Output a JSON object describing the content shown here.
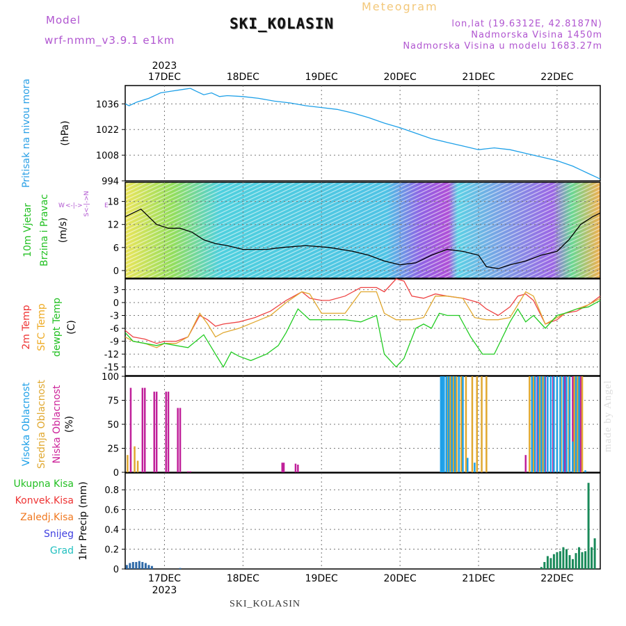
{
  "header": {
    "model_label": "Model",
    "model_name": "wrf-nmm_v3.9.1 e1km",
    "station": "SKI_KOLASIN",
    "title": "Meteogram",
    "lonlat": "lon,lat (19.6312E, 42.8187N)",
    "elevation": "Nadmorska Visina 1450m",
    "model_elevation": "Nadmorska Visina u modelu 1683.27m"
  },
  "footer": {
    "station": "SKI_KOLASIN",
    "credit": "made by Angel"
  },
  "time_axis": {
    "year": "2023",
    "days": [
      "17DEC",
      "18DEC",
      "19DEC",
      "20DEC",
      "21DEC",
      "22DEC"
    ],
    "day_offsets": [
      0.5,
      1.5,
      2.5,
      3.5,
      4.5,
      5.5
    ],
    "range_days": [
      0,
      6.05
    ]
  },
  "chart_data": [
    {
      "type": "line",
      "panel": "pressure",
      "ylabels": [
        "Pritisak na nivou mora",
        "(hPa)"
      ],
      "label_colors": [
        "#2aa0e6",
        "#000000"
      ],
      "yticks": [
        994,
        1008,
        1022,
        1036
      ],
      "ylim": [
        994,
        1046
      ],
      "grid": true,
      "series": [
        {
          "color": "#1ea0e8",
          "x": [
            0,
            0.05,
            0.15,
            0.3,
            0.45,
            0.6,
            0.75,
            0.83,
            0.9,
            1.0,
            1.1,
            1.2,
            1.3,
            1.5,
            1.7,
            1.9,
            2.1,
            2.3,
            2.5,
            2.7,
            2.9,
            3.1,
            3.3,
            3.5,
            3.7,
            3.9,
            4.1,
            4.3,
            4.5,
            4.6,
            4.7,
            4.9,
            5.1,
            5.3,
            5.5,
            5.7,
            5.8,
            5.9,
            6.0,
            6.05
          ],
          "values": [
            1036,
            1035,
            1037,
            1039,
            1042,
            1043,
            1044,
            1044.5,
            1043,
            1041,
            1042,
            1040,
            1040.5,
            1040,
            1039,
            1037.5,
            1036.5,
            1035,
            1034,
            1033,
            1031,
            1028.5,
            1025.5,
            1023,
            1020,
            1017,
            1015,
            1013,
            1011,
            1011.5,
            1012,
            1011,
            1009,
            1007,
            1005,
            1002,
            1000,
            998,
            996,
            995
          ]
        }
      ]
    },
    {
      "type": "line",
      "panel": "wind",
      "ylabels": [
        "10m Vjetar",
        "Brzina i Pravac",
        "(m/s)"
      ],
      "label_colors": [
        "#22c022",
        "#22c022",
        "#000000"
      ],
      "direction_key": [
        "W",
        "<-|->",
        "E",
        "S<-|->N"
      ],
      "yticks": [
        0,
        6,
        12,
        18
      ],
      "ylim": [
        -2,
        23
      ],
      "grid": true,
      "series": [
        {
          "name": "speed",
          "color": "#000000",
          "x": [
            0,
            0.2,
            0.4,
            0.55,
            0.7,
            0.85,
            1.0,
            1.15,
            1.3,
            1.5,
            1.8,
            2.0,
            2.3,
            2.6,
            2.9,
            3.1,
            3.3,
            3.5,
            3.7,
            3.9,
            4.1,
            4.3,
            4.5,
            4.6,
            4.75,
            4.9,
            5.1,
            5.3,
            5.5,
            5.65,
            5.8,
            5.95,
            6.05
          ],
          "values": [
            14,
            16,
            12,
            11,
            11,
            10,
            8,
            7,
            6.5,
            5.5,
            5.5,
            6,
            6.5,
            6,
            5,
            4,
            2.5,
            1.5,
            2,
            4,
            5.5,
            5,
            4,
            1,
            0.5,
            1.5,
            2.5,
            4,
            5,
            8,
            12,
            14,
            15
          ]
        }
      ]
    },
    {
      "type": "line",
      "panel": "temperature",
      "ylabels": [
        "2m Temp",
        "SFC Temp",
        "dewpt Temp",
        "(C)"
      ],
      "label_colors": [
        "#ee3333",
        "#eeaa22",
        "#22c022",
        "#000000"
      ],
      "yticks": [
        -15,
        -12,
        -9,
        -6,
        -3,
        0,
        3
      ],
      "ylim": [
        -17,
        5.5
      ],
      "grid": true,
      "series": [
        {
          "color": "#ee4444",
          "x": [
            0,
            0.1,
            0.25,
            0.4,
            0.5,
            0.65,
            0.8,
            0.95,
            1.05,
            1.15,
            1.25,
            1.45,
            1.65,
            1.85,
            2.05,
            2.25,
            2.35,
            2.5,
            2.6,
            2.8,
            3.0,
            3.2,
            3.3,
            3.45,
            3.55,
            3.65,
            3.8,
            3.95,
            4.1,
            4.3,
            4.5,
            4.6,
            4.75,
            4.9,
            5.0,
            5.1,
            5.2,
            5.35,
            5.5,
            5.6,
            5.75,
            5.9,
            6.05
          ],
          "values": [
            -6.5,
            -8,
            -8.5,
            -9.5,
            -9,
            -9,
            -8,
            -3,
            -4,
            -5.5,
            -5,
            -4.5,
            -3.5,
            -2,
            0.5,
            2.5,
            1,
            0.5,
            0.5,
            1.5,
            3.5,
            3.5,
            2.5,
            5.5,
            5,
            1.5,
            1,
            2,
            1.5,
            1,
            0,
            -1.5,
            -3,
            -1,
            1.5,
            2,
            0.5,
            -5,
            -4,
            -2.5,
            -2,
            -0.5,
            1.5
          ]
        },
        {
          "color": "#e0a830",
          "x": [
            0,
            0.1,
            0.25,
            0.4,
            0.5,
            0.65,
            0.8,
            0.95,
            1.05,
            1.15,
            1.25,
            1.45,
            1.65,
            1.85,
            2.05,
            2.25,
            2.35,
            2.5,
            2.65,
            2.8,
            3.0,
            3.2,
            3.3,
            3.45,
            3.55,
            3.65,
            3.8,
            3.95,
            4.1,
            4.3,
            4.45,
            4.6,
            4.75,
            4.9,
            5.0,
            5.1,
            5.2,
            5.35,
            5.5,
            5.6,
            5.75,
            5.9,
            6.05
          ],
          "values": [
            -8,
            -9,
            -9.5,
            -10.5,
            -9.5,
            -9.5,
            -8,
            -2.5,
            -5,
            -8,
            -7,
            -6,
            -4.5,
            -3,
            0,
            2.5,
            2,
            -2.5,
            -2.5,
            -2.5,
            2.5,
            2.5,
            -2.5,
            -4,
            -4,
            -4,
            -3.5,
            1.5,
            1.5,
            1,
            -3.5,
            -4,
            -4,
            -3.5,
            -0.5,
            2.5,
            1.5,
            -5,
            -3.5,
            -2.5,
            -1.5,
            -0.5,
            1
          ]
        },
        {
          "color": "#22cc22",
          "x": [
            0,
            0.1,
            0.25,
            0.4,
            0.5,
            0.65,
            0.8,
            1.0,
            1.15,
            1.25,
            1.35,
            1.45,
            1.6,
            1.8,
            1.95,
            2.05,
            2.2,
            2.35,
            2.5,
            2.65,
            2.8,
            3.0,
            3.2,
            3.3,
            3.45,
            3.55,
            3.7,
            3.8,
            3.9,
            4.0,
            4.1,
            4.25,
            4.4,
            4.55,
            4.7,
            4.9,
            5.0,
            5.1,
            5.2,
            5.35,
            5.5,
            5.6,
            5.75,
            5.9,
            6.05
          ],
          "values": [
            -7,
            -9,
            -9.5,
            -10,
            -9.5,
            -10,
            -10.5,
            -7.5,
            -12,
            -15,
            -11.5,
            -12.5,
            -13.5,
            -12,
            -10,
            -7,
            -1.5,
            -4,
            -4,
            -4,
            -4,
            -4.5,
            -3,
            -12,
            -15,
            -13,
            -6,
            -5,
            -6,
            -2.5,
            -3,
            -3,
            -8,
            -12,
            -12,
            -4.5,
            -1.5,
            -4.5,
            -3,
            -6,
            -3,
            -2.5,
            -1.5,
            -1,
            0.5
          ]
        }
      ]
    },
    {
      "type": "bar",
      "panel": "clouds",
      "ylabels": [
        "Visoka Oblacnost",
        "Srednja Oblacnost",
        "Niska Oblacnost",
        "(%)"
      ],
      "label_colors": [
        "#1ea0e8",
        "#e0a830",
        "#cc2299",
        "#000000"
      ],
      "yticks": [
        0,
        25,
        50,
        75,
        100
      ],
      "ylim": [
        0,
        100
      ],
      "grid": true,
      "series": [
        {
          "color": "#c0209a",
          "x": [
            0.07,
            0.22,
            0.25,
            0.37,
            0.4,
            0.52,
            0.55,
            0.67,
            0.7,
            0.8,
            0.83,
            2.0,
            2.02,
            2.17,
            2.2,
            5.1,
            5.25,
            5.35,
            5.45,
            5.6,
            5.7,
            5.8
          ],
          "values": [
            88,
            88,
            88,
            84,
            84,
            84,
            84,
            67,
            67,
            1,
            1,
            10,
            10,
            9,
            8,
            18,
            100,
            100,
            100,
            100,
            100,
            100
          ]
        },
        {
          "color": "#e0a830",
          "x": [
            0.03,
            0.12,
            0.16,
            4.1,
            4.14,
            4.18,
            4.22,
            4.28,
            4.34,
            4.42,
            4.48,
            4.54,
            4.6,
            5.15,
            5.2,
            5.28,
            5.32,
            5.5,
            5.55,
            5.65,
            5.72,
            5.76,
            5.82
          ],
          "values": [
            18,
            27,
            12,
            100,
            100,
            100,
            100,
            100,
            100,
            100,
            100,
            100,
            100,
            100,
            100,
            100,
            100,
            100,
            100,
            100,
            100,
            100,
            100
          ]
        },
        {
          "color": "#1ea0e8",
          "x": [
            4.02,
            4.04,
            4.06,
            4.09,
            4.12,
            4.16,
            4.2,
            4.25,
            4.3,
            4.36,
            4.45,
            5.18,
            5.22,
            5.26,
            5.3,
            5.34,
            5.38,
            5.42,
            5.46,
            5.5,
            5.54,
            5.58,
            5.62,
            5.66,
            5.7,
            5.74,
            5.78,
            5.86
          ],
          "values": [
            100,
            100,
            100,
            100,
            100,
            100,
            100,
            100,
            100,
            15,
            10,
            100,
            100,
            100,
            100,
            100,
            100,
            100,
            100,
            100,
            100,
            100,
            100,
            100,
            32,
            100,
            100,
            2
          ]
        }
      ]
    },
    {
      "type": "bar",
      "panel": "precipitation",
      "ylabels": [
        "1hr Precip (mm)"
      ],
      "label_colors": [
        "#000000"
      ],
      "legend": [
        "Ukupna Kisa",
        "Konvek.Kisa",
        "Zaledj.Kisa",
        "Snijeg",
        "Grad"
      ],
      "legend_colors": [
        "#22c022",
        "#ee3333",
        "#f07820",
        "#4040e0",
        "#22c0c0"
      ],
      "yticks": [
        0,
        0.2,
        0.4,
        0.6,
        0.8
      ],
      "ylim": [
        0,
        0.97
      ],
      "grid": true,
      "series": [
        {
          "name": "Snijeg",
          "color": "#2f6aa8",
          "x": [
            0.02,
            0.06,
            0.1,
            0.14,
            0.18,
            0.22,
            0.26,
            0.3,
            0.34,
            0.7
          ],
          "values": [
            0.04,
            0.06,
            0.07,
            0.07,
            0.08,
            0.07,
            0.06,
            0.04,
            0.03,
            0.01
          ]
        },
        {
          "name": "Ukupna Kisa",
          "color": "#1a8a5a",
          "x": [
            5.3,
            5.34,
            5.38,
            5.42,
            5.46,
            5.5,
            5.54,
            5.58,
            5.62,
            5.66,
            5.7,
            5.74,
            5.78,
            5.82,
            5.86,
            5.9,
            5.94,
            5.98
          ],
          "values": [
            0.02,
            0.07,
            0.13,
            0.11,
            0.15,
            0.17,
            0.18,
            0.22,
            0.2,
            0.14,
            0.1,
            0.16,
            0.22,
            0.17,
            0.18,
            0.87,
            0.22,
            0.31
          ]
        }
      ]
    }
  ]
}
